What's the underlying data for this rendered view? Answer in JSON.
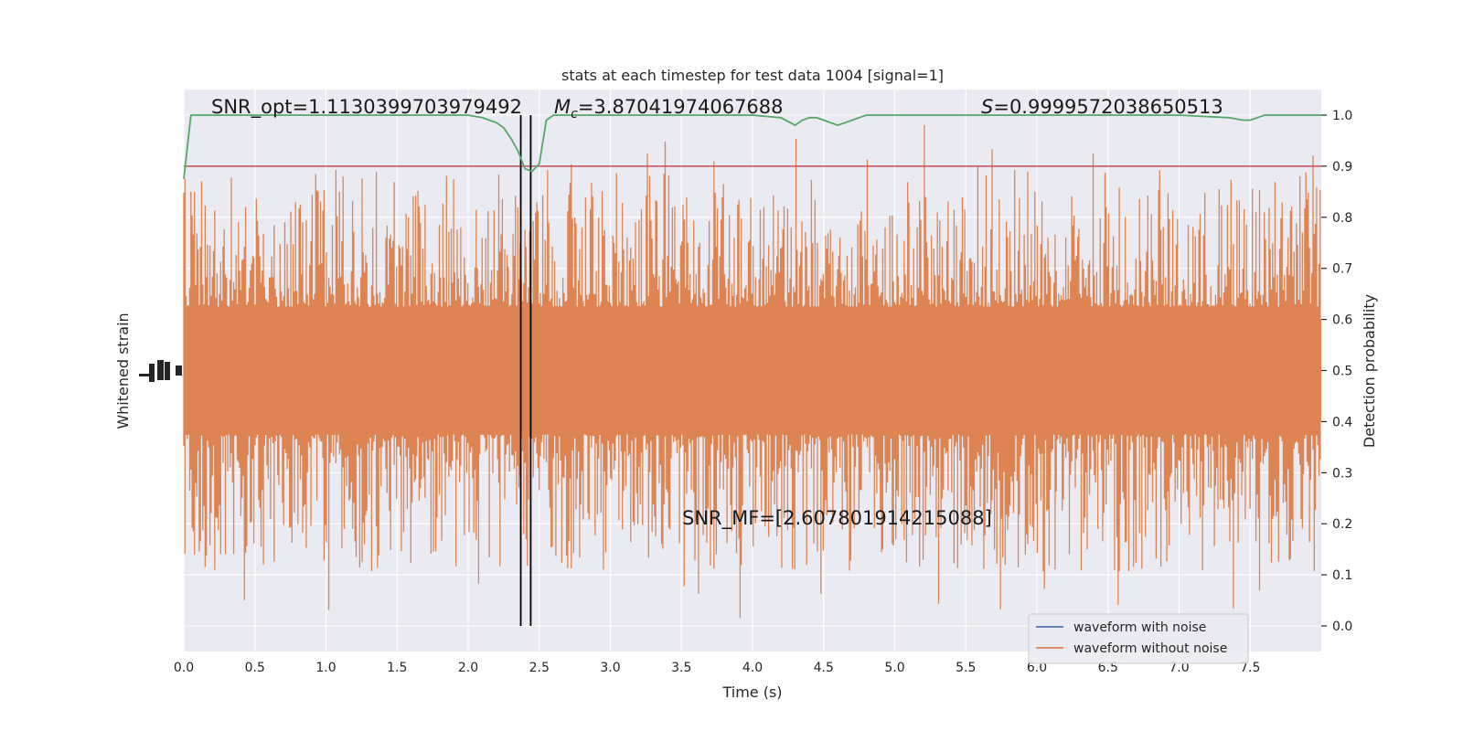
{
  "chart_data": {
    "type": "line",
    "title": "stats at each timestep for test data 1004 [signal=1]",
    "xlabel": "Time (s)",
    "ylabel_left": "Whitened strain",
    "ylabel_right": "Detection probability",
    "xlim": [
      0,
      8
    ],
    "ylim_right": [
      -0.05,
      1.05
    ],
    "x_ticks": [
      0.0,
      0.5,
      1.0,
      1.5,
      2.0,
      2.5,
      3.0,
      3.5,
      4.0,
      4.5,
      5.0,
      5.5,
      6.0,
      6.5,
      7.0,
      7.5
    ],
    "x_tick_labels": [
      "0.0",
      "0.5",
      "1.0",
      "1.5",
      "2.0",
      "2.5",
      "3.0",
      "3.5",
      "4.0",
      "4.5",
      "5.0",
      "5.5",
      "6.0",
      "6.5",
      "7.0",
      "7.5"
    ],
    "right_ticks": [
      0.0,
      0.1,
      0.2,
      0.3,
      0.4,
      0.5,
      0.6,
      0.7,
      0.8,
      0.9,
      1.0
    ],
    "right_tick_labels": [
      "0.0",
      "0.1",
      "0.2",
      "0.3",
      "0.4",
      "0.5",
      "0.6",
      "0.7",
      "0.8",
      "0.9",
      "1.0"
    ],
    "grid": true,
    "annotations": {
      "snr_opt": "SNR_opt=1.1130399703979492",
      "mc_symbol": "M",
      "mc_sub": "c",
      "mc_value": "=3.87041974067688",
      "s_symbol": "S",
      "s_value": "=0.9999572038650513",
      "snr_mf": "SNR_MF=[2.607801914215088]"
    },
    "threshold": 0.9,
    "vlines": [
      2.37,
      2.44
    ],
    "legend": {
      "position": "lower-right",
      "entries": [
        {
          "label": "waveform with noise",
          "color": "#4c72b0"
        },
        {
          "label": "waveform without noise",
          "color": "#dd8452"
        }
      ]
    },
    "series": [
      {
        "kind": "probability",
        "color": "#55a868",
        "x": [
          0.0,
          0.05,
          0.1,
          0.5,
          1.0,
          1.5,
          2.0,
          2.1,
          2.2,
          2.25,
          2.3,
          2.35,
          2.4,
          2.45,
          2.5,
          2.55,
          2.6,
          3.0,
          3.5,
          4.0,
          4.2,
          4.3,
          4.35,
          4.4,
          4.45,
          4.5,
          4.55,
          4.6,
          4.65,
          4.7,
          4.8,
          5.0,
          5.5,
          6.0,
          6.5,
          7.0,
          7.35,
          7.45,
          7.5,
          7.55,
          7.6,
          7.7,
          8.0
        ],
        "y": [
          0.875,
          1.0,
          1.0,
          1.0,
          1.0,
          1.0,
          1.0,
          0.995,
          0.985,
          0.975,
          0.955,
          0.93,
          0.895,
          0.89,
          0.905,
          0.99,
          1.0,
          1.0,
          1.0,
          1.0,
          0.995,
          0.98,
          0.99,
          0.995,
          0.995,
          0.99,
          0.985,
          0.98,
          0.985,
          0.99,
          1.0,
          1.0,
          1.0,
          1.0,
          1.0,
          1.0,
          0.995,
          0.99,
          0.99,
          0.995,
          1.0,
          1.0,
          1.0
        ]
      },
      {
        "kind": "strain_envelope",
        "color": "#dd8452",
        "note_level_center": 0.5
      }
    ]
  }
}
